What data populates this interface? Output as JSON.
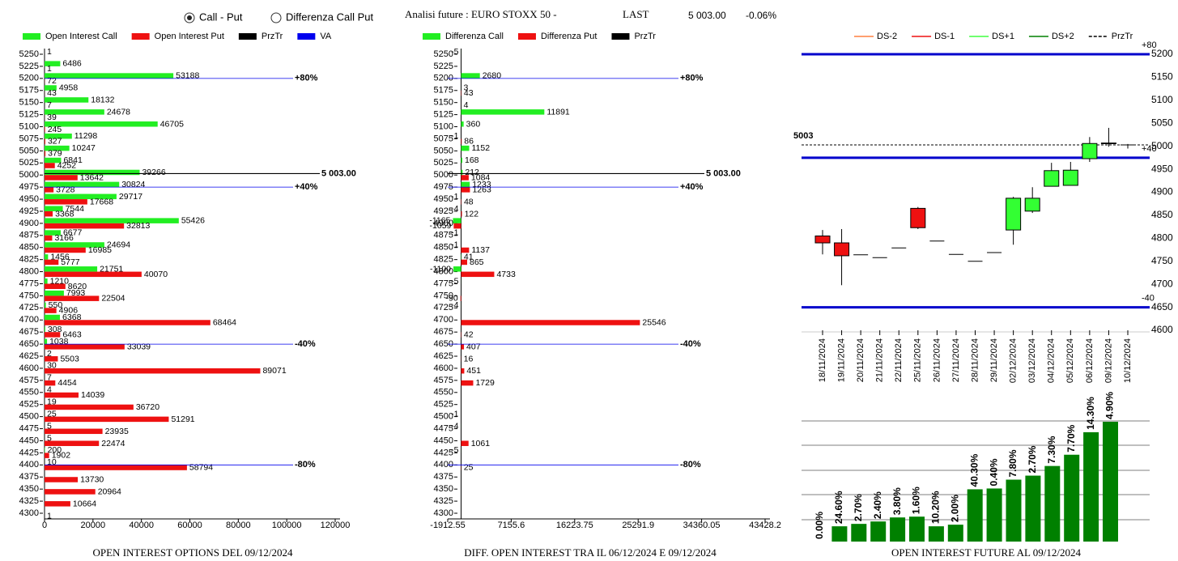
{
  "header": {
    "radio_options": [
      "Call - Put",
      "Differenza Call Put"
    ],
    "selected": 0,
    "instrument": "Analisi future : EURO STOXX 50 -",
    "last_label": "LAST",
    "last_value": "5 003.00",
    "change": "-0.06%"
  },
  "chart_data": [
    {
      "type": "hbar",
      "title": "OPEN INTEREST OPTIONS DEL 09/12/2024",
      "categories": [
        5250,
        5225,
        5200,
        5175,
        5150,
        5125,
        5100,
        5075,
        5050,
        5025,
        5000,
        4975,
        4950,
        4925,
        4900,
        4875,
        4850,
        4825,
        4800,
        4775,
        4750,
        4725,
        4700,
        4675,
        4650,
        4625,
        4600,
        4575,
        4550,
        4525,
        4500,
        4475,
        4450,
        4425,
        4400,
        4375,
        4350,
        4325,
        4300
      ],
      "series": [
        {
          "name": "Open Interest Call",
          "color": "#22ee22",
          "values": [
            1,
            6486,
            53188,
            4958,
            18132,
            24678,
            46705,
            11298,
            10247,
            6841,
            39266,
            30824,
            29717,
            7544,
            55426,
            6677,
            24694,
            1456,
            21751,
            1210,
            7993,
            550,
            6368,
            308,
            1038,
            2,
            30,
            7,
            4,
            19,
            25,
            5,
            5,
            200,
            10,
            0,
            0,
            0,
            0
          ]
        },
        {
          "name": "Open Interest Put",
          "color": "#ee1111",
          "values": [
            0,
            1,
            72,
            43,
            7,
            39,
            245,
            327,
            379,
            4252,
            13642,
            3728,
            17668,
            3368,
            32813,
            3166,
            16985,
            5777,
            40070,
            8620,
            22504,
            4906,
            68464,
            6463,
            33039,
            5503,
            89071,
            4454,
            14039,
            36720,
            51291,
            23935,
            22474,
            1902,
            58794,
            13730,
            20964,
            10664,
            1
          ]
        }
      ],
      "legend": [
        {
          "name": "PrzTr",
          "color": "#000000"
        },
        {
          "name": "VA",
          "color": "#0000ee"
        }
      ],
      "reference_lines": [
        {
          "value": 5200,
          "label": "+80%",
          "color": "#0000ee"
        },
        {
          "value": 5003,
          "label": "5 003.00",
          "color": "#000000"
        },
        {
          "value": 4975,
          "label": "+40%",
          "color": "#0000ee"
        },
        {
          "value": 4650,
          "label": "-40%",
          "color": "#0000ee"
        },
        {
          "value": 4400,
          "label": "-80%",
          "color": "#0000ee"
        }
      ],
      "xlim": [
        0,
        120000
      ],
      "xticks": [
        0,
        20000,
        40000,
        60000,
        80000,
        100000,
        120000
      ]
    },
    {
      "type": "hbar",
      "title": "DIFF. OPEN INTEREST TRA IL 06/12/2024 E 09/12/2024",
      "categories": [
        5250,
        5225,
        5200,
        5175,
        5150,
        5125,
        5100,
        5075,
        5050,
        5025,
        5000,
        4975,
        4950,
        4925,
        4900,
        4875,
        4850,
        4825,
        4800,
        4775,
        4750,
        4725,
        4700,
        4675,
        4650,
        4625,
        4600,
        4575,
        4550,
        4525,
        4500,
        4475,
        4450,
        4425,
        4400,
        4375,
        4350,
        4325,
        4300
      ],
      "series": [
        {
          "name": "Differenza Call",
          "color": "#22ee22",
          "values": [
            -5,
            0,
            2680,
            3,
            0,
            11891,
            360,
            -1,
            1152,
            168,
            212,
            1233,
            -1,
            -4,
            -1165,
            -1,
            -1,
            41,
            -1100,
            -5,
            0,
            -4,
            0,
            0,
            0,
            0,
            0,
            0,
            0,
            0,
            -1,
            -4,
            0,
            -5,
            0,
            0,
            0,
            0,
            0
          ]
        },
        {
          "name": "Differenza Put",
          "color": "#ee1111",
          "values": [
            0,
            0,
            0,
            43,
            4,
            0,
            0,
            86,
            0,
            0,
            1084,
            1263,
            48,
            122,
            -1059,
            0,
            1137,
            865,
            4733,
            0,
            -90,
            0,
            25546,
            42,
            407,
            16,
            451,
            1729,
            0,
            0,
            0,
            0,
            1061,
            0,
            25,
            0,
            0,
            0,
            0
          ]
        }
      ],
      "legend": [
        {
          "name": "PrzTr",
          "color": "#000000"
        }
      ],
      "reference_lines": [
        {
          "value": 5200,
          "label": "+80%",
          "color": "#0000ee"
        },
        {
          "value": 5003,
          "label": "5 003.00",
          "color": "#000000"
        },
        {
          "value": 4975,
          "label": "+40%",
          "color": "#0000ee"
        },
        {
          "value": 4650,
          "label": "-40%",
          "color": "#0000ee"
        },
        {
          "value": 4400,
          "label": "-80%",
          "color": "#0000ee"
        }
      ],
      "xlim": [
        -1912.55,
        43428.2
      ],
      "xticks": [
        -1912.55,
        7155.6,
        16223.75,
        25291.9,
        34360.05,
        43428.2
      ]
    },
    {
      "type": "candlestick",
      "x": [
        "18/11/2024",
        "19/11/2024",
        "20/11/2024",
        "21/11/2024",
        "22/11/2024",
        "25/11/2024",
        "26/11/2024",
        "27/11/2024",
        "28/11/2024",
        "29/11/2024",
        "02/12/2024",
        "03/12/2024",
        "04/12/2024",
        "05/12/2024",
        "06/12/2024",
        "09/12/2024",
        "10/12/2024"
      ],
      "open": [
        4805,
        4790,
        4764,
        4758,
        4779,
        4865,
        4794,
        4765,
        4750,
        4769,
        4818,
        4859,
        4913,
        4915,
        4973,
        5006,
        5003
      ],
      "high": [
        4818,
        4820,
        4764,
        4758,
        4779,
        4868,
        4794,
        4765,
        4750,
        4769,
        4890,
        4911,
        4964,
        4966,
        5020,
        5040,
        5005
      ],
      "low": [
        4765,
        4698,
        4764,
        4758,
        4779,
        4820,
        4794,
        4765,
        4750,
        4769,
        4786,
        4855,
        4913,
        4915,
        4966,
        4999,
        4995
      ],
      "close": [
        4790,
        4762,
        4764,
        4758,
        4779,
        4823,
        4794,
        4765,
        4750,
        4769,
        4887,
        4887,
        4947,
        4948,
        5006,
        5007,
        5003
      ],
      "up_color": "#33ff33",
      "down_color": "#ee1111",
      "legend": [
        {
          "name": "DS-2",
          "color": "#ff8040",
          "dashed": false
        },
        {
          "name": "DS-1",
          "color": "#ee1111",
          "dashed": false
        },
        {
          "name": "DS+1",
          "color": "#40ff40",
          "dashed": false
        },
        {
          "name": "DS+2",
          "color": "#008000",
          "dashed": false
        },
        {
          "name": "PrzTr",
          "color": "#000000",
          "dashed": true
        }
      ],
      "reference_lines": [
        {
          "value": 5200,
          "label": "+80",
          "color": "#0000cc",
          "dashed": false
        },
        {
          "value": 5003,
          "label": "5003",
          "color": "#000000",
          "dashed": true
        },
        {
          "value": 4975,
          "label": "+40",
          "color": "#0000cc",
          "dashed": false
        },
        {
          "value": 4650,
          "label": "-40",
          "color": "#0000cc",
          "dashed": false
        }
      ],
      "ylim": [
        4600,
        5200
      ],
      "yticks": [
        4600,
        4650,
        4700,
        4750,
        4800,
        4850,
        4900,
        4950,
        5000,
        5050,
        5100,
        5150,
        5200
      ]
    },
    {
      "type": "bar",
      "title": "OPEN INTEREST FUTURE AL 09/12/2024",
      "values": [
        0,
        19,
        22,
        25,
        30,
        31,
        19,
        21,
        65,
        66,
        77,
        82,
        94,
        108,
        136,
        149
      ],
      "change_labels": [
        "0.00%",
        "24.60%",
        "2.70%",
        "2.40%",
        "3.80%",
        "1.60%",
        "10.20%",
        "2.00%",
        "40.30%",
        "0.40%",
        "7.80%",
        "2.70%",
        "7.30%",
        "7.70%",
        "14.30%",
        "4.90%"
      ],
      "color": "#008000",
      "ylim": [
        0,
        150
      ]
    }
  ]
}
